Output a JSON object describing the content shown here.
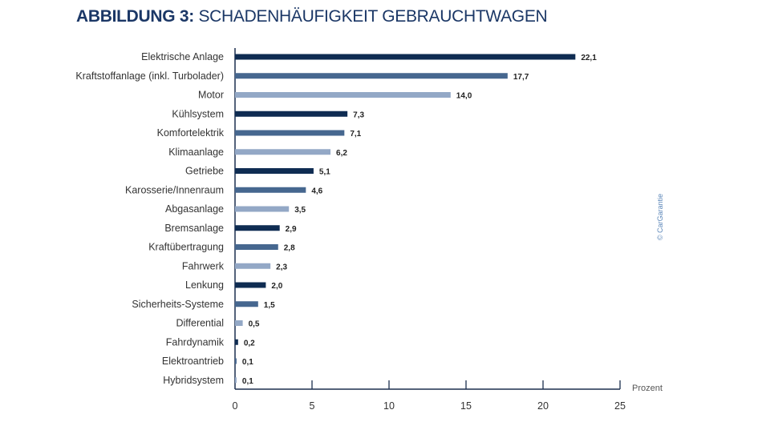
{
  "chart_data": {
    "type": "bar",
    "orientation": "horizontal",
    "title_bold": "ABBILDUNG 3:",
    "title": "SCHADENHÄUFIGKEIT GEBRAUCHTWAGEN",
    "xlabel": "Prozent",
    "ylabel": "",
    "xlim": [
      0,
      25
    ],
    "xticks": [
      "0",
      "5",
      "10",
      "15",
      "20",
      "25"
    ],
    "grid": false,
    "categories": [
      "Elektrische Anlage",
      "Kraftstoffanlage (inkl. Turbolader)",
      "Motor",
      "Kühlsystem",
      "Komfortelektrik",
      "Klimaanlage",
      "Getriebe",
      "Karosserie/Innenraum",
      "Abgasanlage",
      "Bremsanlage",
      "Kraftübertragung",
      "Fahrwerk",
      "Lenkung",
      "Sicherheits-Systeme",
      "Differential",
      "Fahrdynamik",
      "Elektroantrieb",
      "Hybridsystem"
    ],
    "values": [
      22.1,
      17.7,
      14.0,
      7.3,
      7.1,
      6.2,
      5.1,
      4.6,
      3.5,
      2.9,
      2.8,
      2.3,
      2.0,
      1.5,
      0.5,
      0.2,
      0.1,
      0.1
    ],
    "value_labels": [
      "22,1",
      "17,7",
      "14,0",
      "7,3",
      "7,1",
      "6,2",
      "5,1",
      "4,6",
      "3,5",
      "2,9",
      "2,8",
      "2,3",
      "2,0",
      "1,5",
      "0,5",
      "0,2",
      "0,1",
      "0,1"
    ],
    "bar_colors": [
      "#0f2c52",
      "#46678f",
      "#93a8c6"
    ],
    "watermark": "© CarGarantie"
  }
}
